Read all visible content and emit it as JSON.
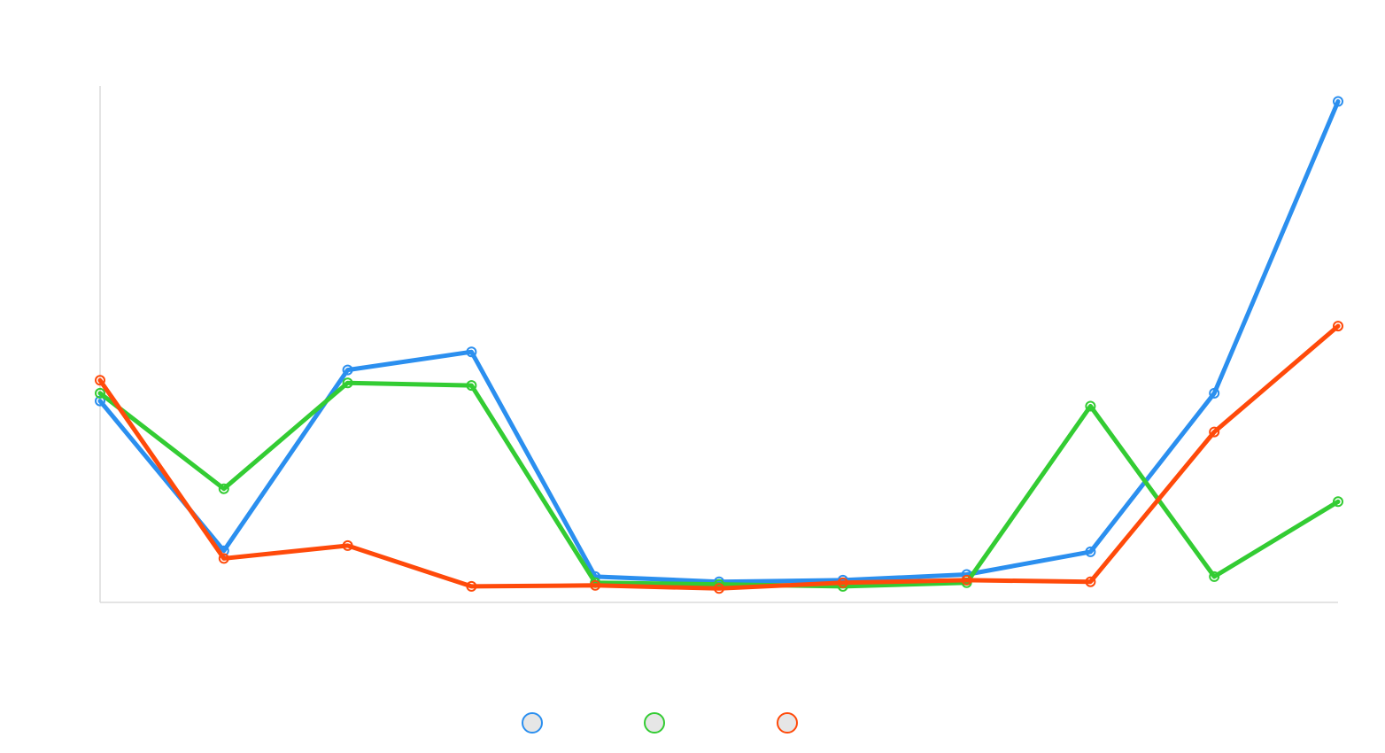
{
  "chart_data": {
    "type": "line",
    "title": "",
    "xlabel": "",
    "ylabel": "",
    "categories": [
      "",
      "",
      "",
      "",
      "",
      "",
      "",
      "",
      "",
      "",
      ""
    ],
    "ylim": [
      0,
      100
    ],
    "grid": false,
    "legend_position": "bottom",
    "series": [
      {
        "color": "#2b8fef",
        "values": [
          39,
          10,
          45,
          48.5,
          5,
          4,
          4.3,
          5.4,
          9.8,
          40.5,
          97
        ]
      },
      {
        "color": "#33cc33",
        "values": [
          40.5,
          22,
          42.5,
          42,
          3.8,
          3.5,
          3.1,
          3.8,
          38,
          5,
          19.5
        ]
      },
      {
        "color": "#ff4a0a",
        "values": [
          43,
          8.5,
          11,
          3.1,
          3.3,
          2.7,
          3.8,
          4.3,
          4,
          33,
          53.5
        ]
      }
    ]
  }
}
